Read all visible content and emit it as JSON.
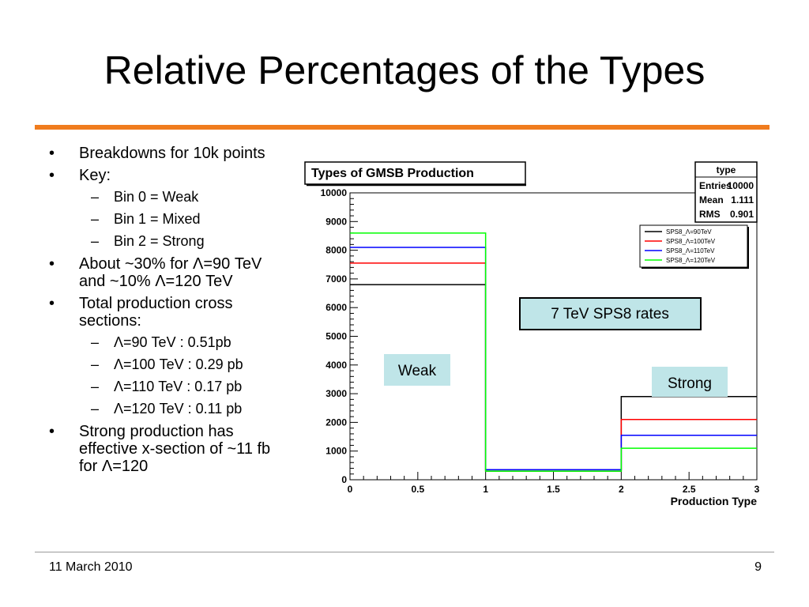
{
  "slide": {
    "title": "Relative Percentages of the Types",
    "footer_date": "11 March 2010",
    "page_number": "9",
    "accent_color": "#f07c1e"
  },
  "bullets": [
    {
      "text": "Breakdowns for 10k points"
    },
    {
      "text": "Key:",
      "sub": [
        "Bin 0 = Weak",
        "Bin 1 = Mixed",
        "Bin 2 = Strong"
      ]
    },
    {
      "text": "About ~30% for Λ=90 TeV and ~10% Λ=120 TeV"
    },
    {
      "text": "Total production cross sections:",
      "sub": [
        "Λ=90 TeV : 0.51pb",
        "Λ=100 TeV : 0.29 pb",
        "Λ=110 TeV : 0.17 pb",
        "Λ=120 TeV : 0.11 pb"
      ]
    },
    {
      "text": "Strong production has effective x-section of ~11 fb for Λ=120"
    }
  ],
  "chart_data": {
    "type": "histogram",
    "title": "Types of GMSB Production",
    "xlabel": "Production Type",
    "ylabel": "",
    "xlim": [
      0,
      3
    ],
    "ylim": [
      0,
      10000
    ],
    "bin_edges": [
      0,
      1,
      2,
      3
    ],
    "x_ticks": [
      "0",
      "0.5",
      "1",
      "1.5",
      "2",
      "2.5",
      "3"
    ],
    "y_ticks": [
      "0",
      "1000",
      "2000",
      "3000",
      "4000",
      "5000",
      "6000",
      "7000",
      "8000",
      "9000",
      "10000"
    ],
    "series": [
      {
        "name": "SPS8_Λ=90TeV",
        "color": "#000000",
        "values": [
          6800,
          300,
          2900
        ]
      },
      {
        "name": "SPS8_Λ=100TeV",
        "color": "#ff0000",
        "values": [
          7550,
          350,
          2100
        ]
      },
      {
        "name": "SPS8_Λ=110TeV",
        "color": "#0000ff",
        "values": [
          8100,
          350,
          1550
        ]
      },
      {
        "name": "SPS8_Λ=120TeV",
        "color": "#00ff00",
        "values": [
          8600,
          300,
          1100
        ]
      }
    ],
    "legend_position": "top-right",
    "stats_box": {
      "title": "type",
      "rows": [
        {
          "label": "Entries",
          "value": "10000"
        },
        {
          "label": "Mean",
          "value": "1.111"
        },
        {
          "label": "RMS",
          "value": "0.901"
        }
      ]
    },
    "annotations": {
      "rates": "7 TeV SPS8 rates",
      "weak": "Weak",
      "strong": "Strong"
    },
    "annotation_fill": "#bfe5e8"
  }
}
